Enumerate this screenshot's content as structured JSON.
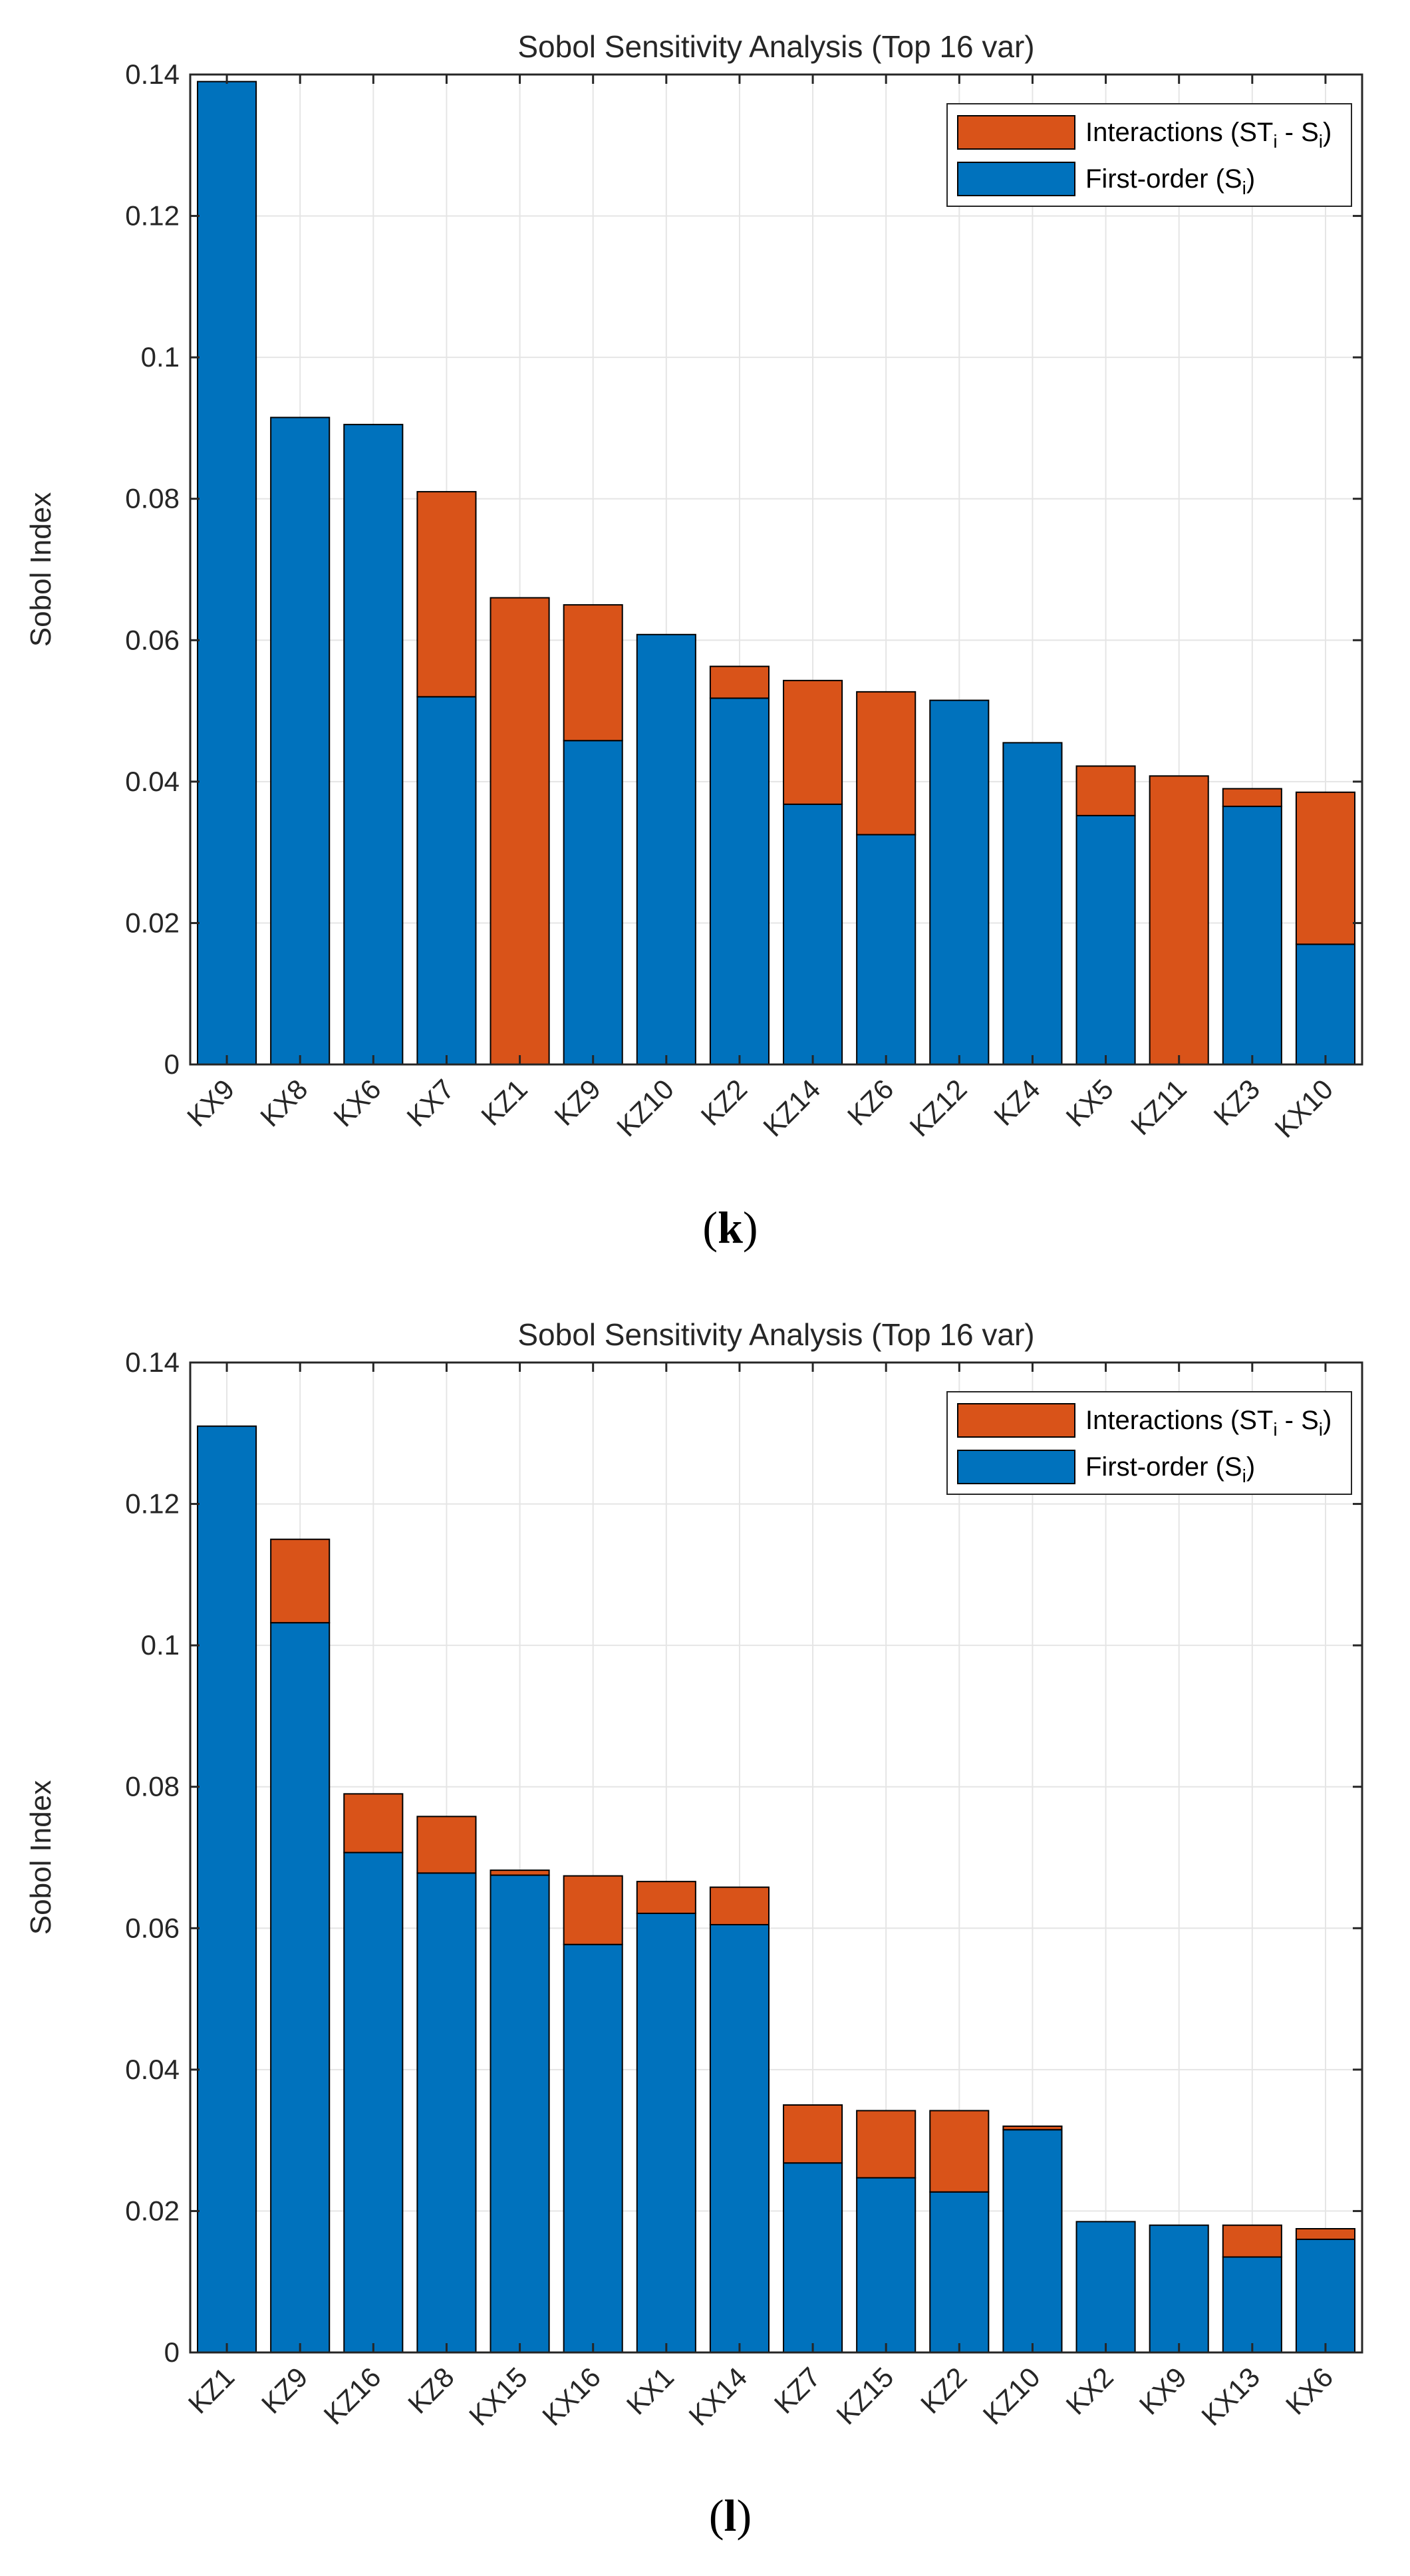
{
  "colors": {
    "first_order": "#0072BD",
    "interactions": "#D95319",
    "grid": "#e5e5e5",
    "axis": "#262626"
  },
  "chart_data": [
    {
      "type": "bar",
      "stacked": true,
      "title": "Sobol Sensitivity Analysis (Top 16 var)",
      "xlabel": "",
      "ylabel": "Sobol Index",
      "ylim": [
        0,
        0.14
      ],
      "yticks": [
        "0",
        "0.02",
        "0.04",
        "0.06",
        "0.08",
        "0.1",
        "0.12",
        "0.14"
      ],
      "grid": true,
      "legend": {
        "position": "top-right",
        "entries": [
          {
            "label": "Interactions (ST",
            "sub1": "i",
            "mid": " - S",
            "sub2": "i",
            "end": ")"
          },
          {
            "label": "First-order (S",
            "sub1": "i",
            "mid": "",
            "sub2": "",
            "end": ")"
          }
        ]
      },
      "categories": [
        "KX9",
        "KX8",
        "KX6",
        "KX7",
        "KZ1",
        "KZ9",
        "KZ10",
        "KZ2",
        "KZ14",
        "KZ6",
        "KZ12",
        "KZ4",
        "KX5",
        "KZ11",
        "KZ3",
        "KX10"
      ],
      "series": [
        {
          "name": "First-order (Si)",
          "values": [
            0.139,
            0.0915,
            0.0905,
            0.052,
            0.0,
            0.0458,
            0.0608,
            0.0518,
            0.0368,
            0.0325,
            0.0515,
            0.0455,
            0.0352,
            0.0,
            0.0365,
            0.017
          ]
        },
        {
          "name": "Interactions (STi - Si)",
          "values": [
            0.0,
            0.0,
            0.0,
            0.029,
            0.066,
            0.0192,
            0.0,
            0.0045,
            0.0175,
            0.0202,
            0.0,
            0.0,
            0.007,
            0.0408,
            0.0025,
            0.0215
          ]
        }
      ],
      "caption": "(k)",
      "caption_letter": "k"
    },
    {
      "type": "bar",
      "stacked": true,
      "title": "Sobol Sensitivity Analysis (Top 16 var)",
      "xlabel": "",
      "ylabel": "Sobol Index",
      "ylim": [
        0,
        0.14
      ],
      "yticks": [
        "0",
        "0.02",
        "0.04",
        "0.06",
        "0.08",
        "0.1",
        "0.12",
        "0.14"
      ],
      "grid": true,
      "legend": {
        "position": "top-right",
        "entries": [
          {
            "label": "Interactions (ST",
            "sub1": "i",
            "mid": " - S",
            "sub2": "i",
            "end": ")"
          },
          {
            "label": "First-order (S",
            "sub1": "i",
            "mid": "",
            "sub2": "",
            "end": ")"
          }
        ]
      },
      "categories": [
        "KZ1",
        "KZ9",
        "KZ16",
        "KZ8",
        "KX15",
        "KX16",
        "KX1",
        "KX14",
        "KZ7",
        "KZ15",
        "KZ2",
        "KZ10",
        "KX2",
        "KX9",
        "KX13",
        "KX6"
      ],
      "series": [
        {
          "name": "First-order (Si)",
          "values": [
            0.131,
            0.1032,
            0.0707,
            0.0678,
            0.0675,
            0.0577,
            0.0621,
            0.0605,
            0.0268,
            0.0247,
            0.0227,
            0.0315,
            0.0185,
            0.018,
            0.0135,
            0.016
          ]
        },
        {
          "name": "Interactions (STi - Si)",
          "values": [
            0.0,
            0.0118,
            0.0083,
            0.008,
            0.0007,
            0.0097,
            0.0045,
            0.0053,
            0.0082,
            0.0095,
            0.0115,
            0.0005,
            0.0,
            0.0,
            0.0045,
            0.0015
          ]
        }
      ],
      "caption": "(l)",
      "caption_letter": "l"
    }
  ]
}
